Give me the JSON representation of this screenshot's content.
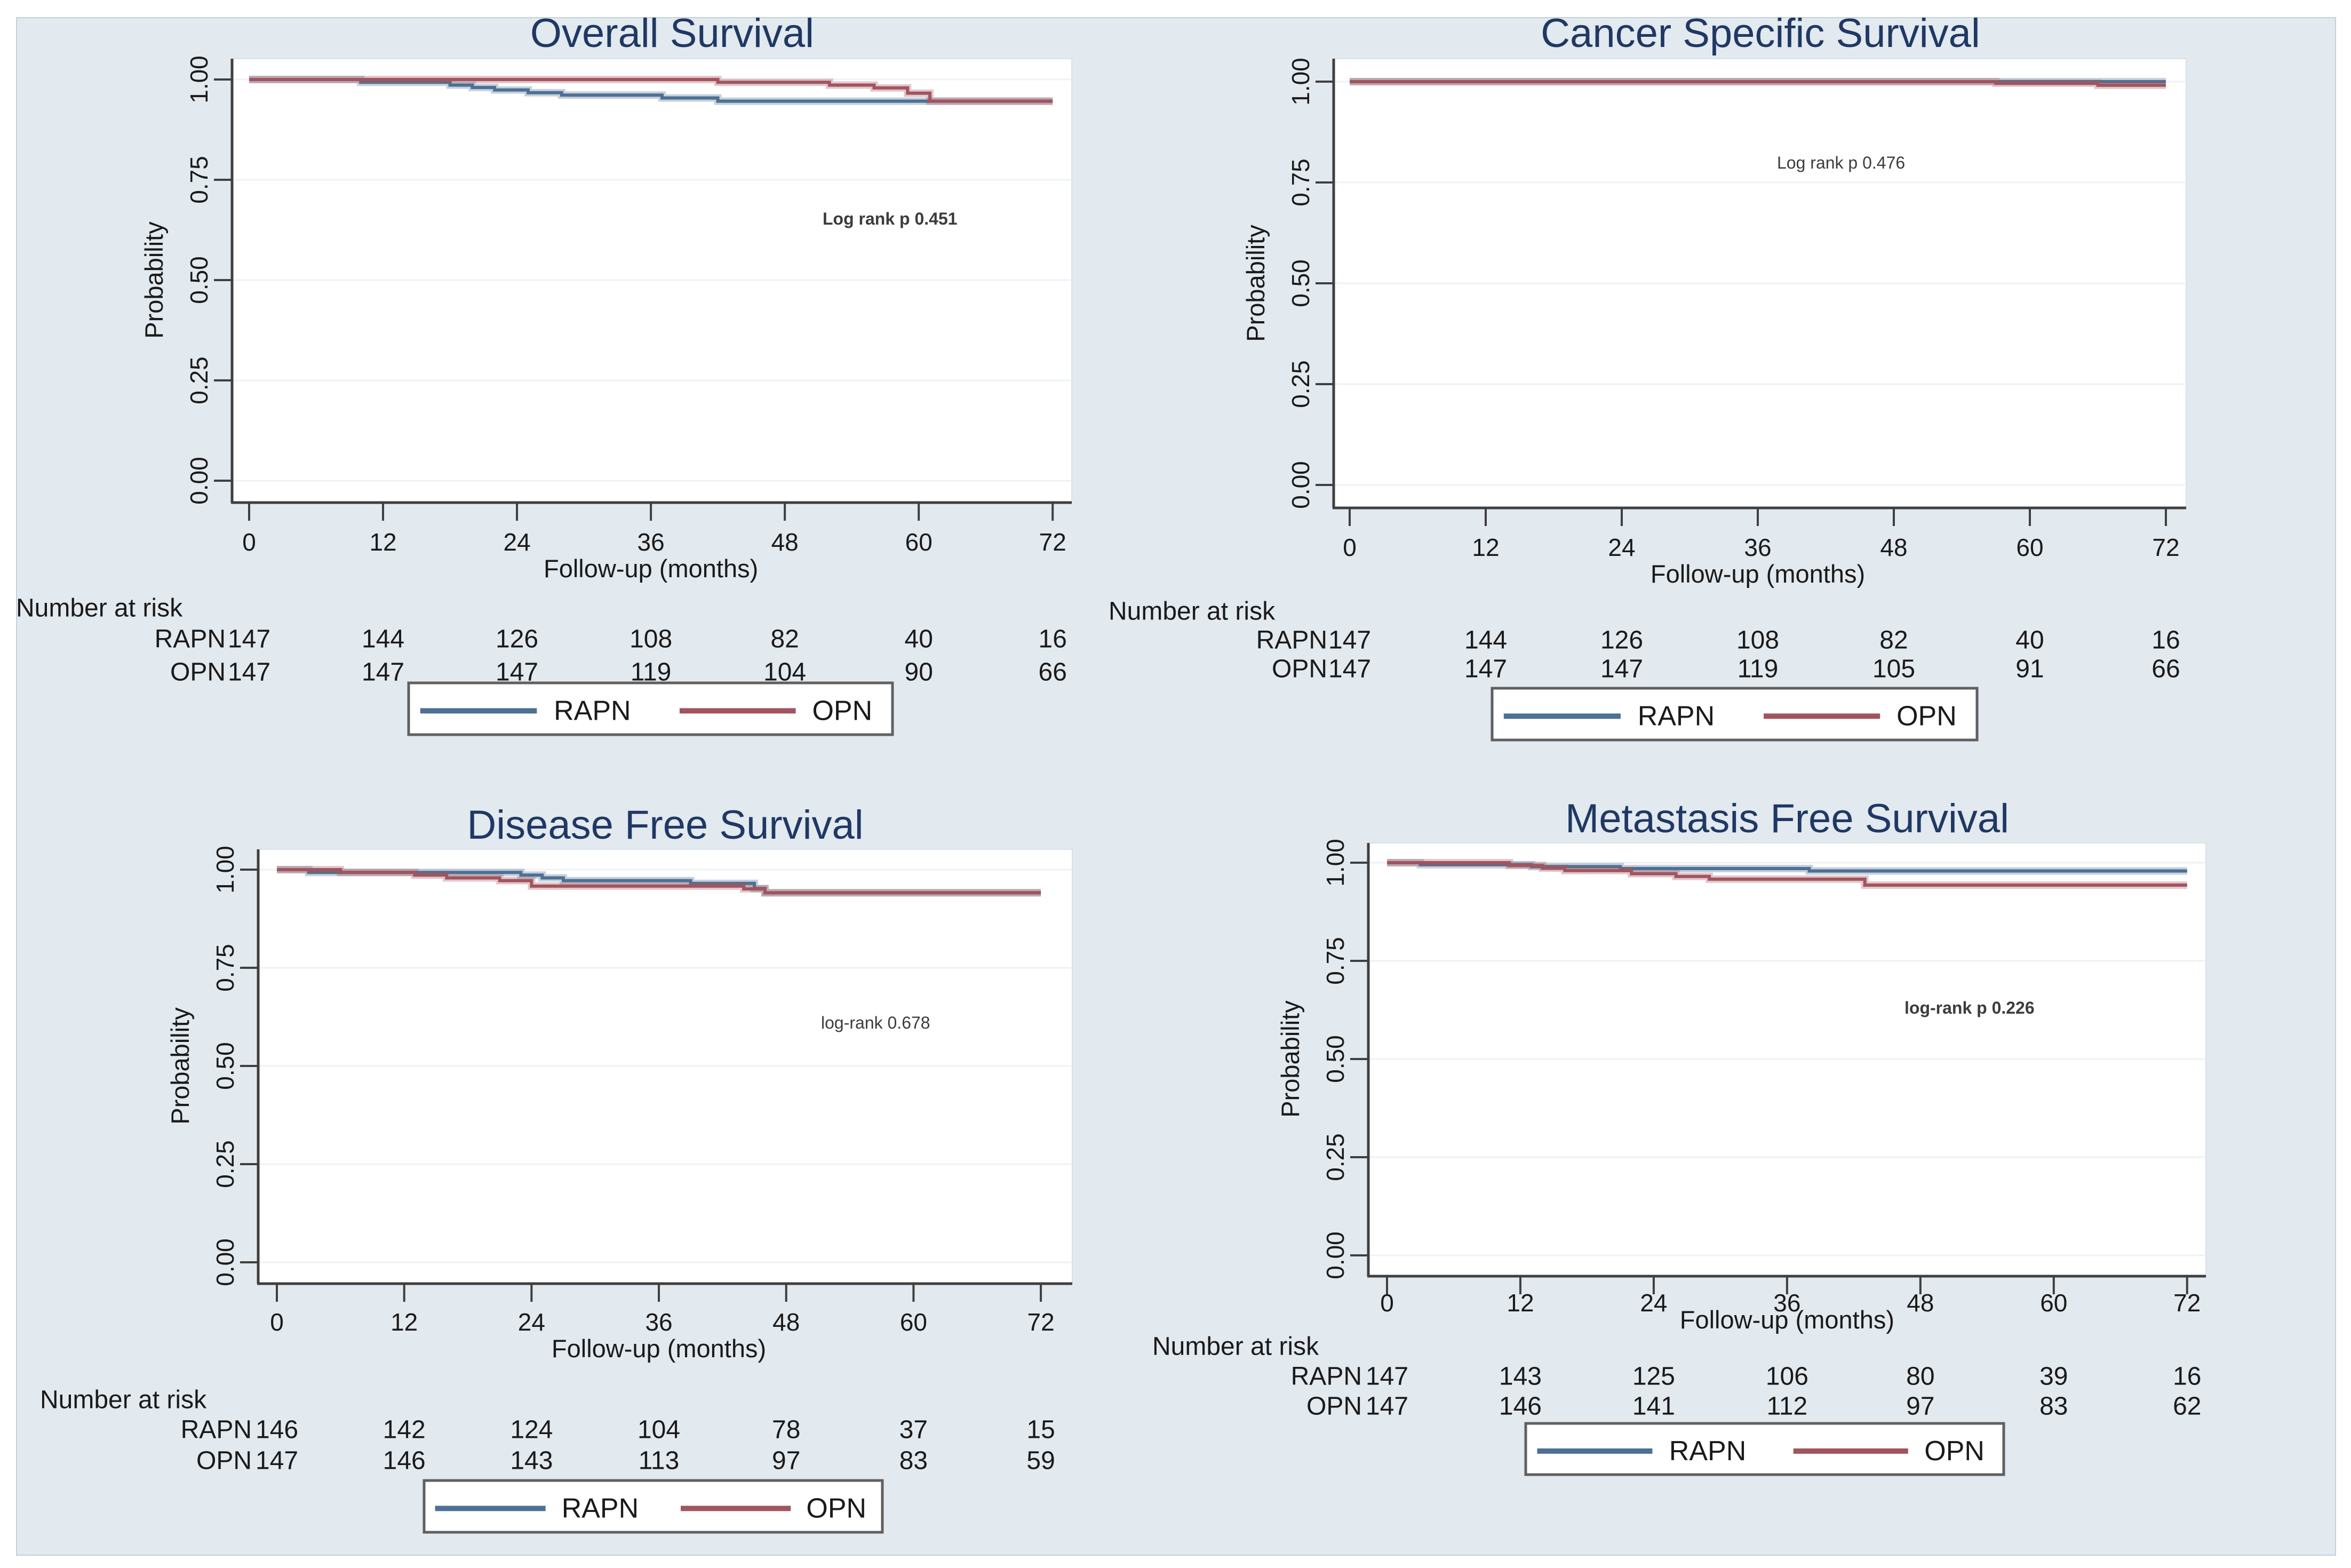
{
  "figure": {
    "background": "#ffffff",
    "panel_background": "#e2e9ef",
    "plot_background": "#ffffff",
    "plot_border_color": "#d9e2ea",
    "grid_color": "#edf2f7",
    "axis_color": "#3f3f3f",
    "text_color": "#1a1a1a",
    "annotation_color": "#3c3c3c",
    "title_color": "#1f3864",
    "rapn_color": "#4d7094",
    "opn_color": "#a2545e",
    "legend_border_color": "#606060"
  },
  "chart_data": [
    {
      "type": "line",
      "variant": "kaplan-meier-step",
      "title": "Overall Survival",
      "xlabel": "Follow-up (months)",
      "ylabel": "Probability",
      "xticks": [
        0,
        12,
        24,
        36,
        48,
        60,
        72
      ],
      "ytick_labels": [
        "0.00",
        "0.25",
        "0.50",
        "0.75",
        "1.00"
      ],
      "xlim": [
        0,
        72
      ],
      "ylim": [
        0,
        1.05
      ],
      "grid": true,
      "annotation": {
        "text": "Log rank p 0.451",
        "bold": true
      },
      "series": [
        {
          "name": "RAPN",
          "color": "#4d7094",
          "steps": [
            [
              0,
              1.0
            ],
            [
              10,
              0.993
            ],
            [
              18,
              0.986
            ],
            [
              20,
              0.98
            ],
            [
              22,
              0.974
            ],
            [
              25,
              0.967
            ],
            [
              28,
              0.961
            ],
            [
              37,
              0.954
            ],
            [
              42,
              0.946
            ],
            [
              72,
              0.946
            ]
          ]
        },
        {
          "name": "OPN",
          "color": "#a2545e",
          "steps": [
            [
              0,
              1.0
            ],
            [
              42,
              0.993
            ],
            [
              52,
              0.986
            ],
            [
              56,
              0.979
            ],
            [
              59,
              0.966
            ],
            [
              61,
              0.946
            ],
            [
              72,
              0.946
            ]
          ]
        }
      ],
      "number_at_risk": {
        "header": "Number at risk",
        "rows": [
          {
            "label": "RAPN",
            "values": [
              147,
              144,
              126,
              108,
              82,
              40,
              16
            ]
          },
          {
            "label": "OPN",
            "values": [
              147,
              147,
              147,
              119,
              104,
              90,
              66
            ]
          }
        ]
      },
      "legend": {
        "position": "bottom",
        "entries": [
          {
            "label": "RAPN",
            "color": "#4d7094"
          },
          {
            "label": "OPN",
            "color": "#a2545e"
          }
        ]
      }
    },
    {
      "type": "line",
      "variant": "kaplan-meier-step",
      "title": "Cancer Specific Survival",
      "xlabel": "Follow-up (months)",
      "ylabel": "Probability",
      "xticks": [
        0,
        12,
        24,
        36,
        48,
        60,
        72
      ],
      "ytick_labels": [
        "0.00",
        "0.25",
        "0.50",
        "0.75",
        "1.00"
      ],
      "xlim": [
        0,
        72
      ],
      "ylim": [
        0,
        1.05
      ],
      "grid": true,
      "annotation": {
        "text": "Log rank p 0.476",
        "bold": false
      },
      "series": [
        {
          "name": "RAPN",
          "color": "#4d7094",
          "steps": [
            [
              0,
              1.0
            ],
            [
              72,
              1.0
            ]
          ]
        },
        {
          "name": "OPN",
          "color": "#a2545e",
          "steps": [
            [
              0,
              1.0
            ],
            [
              57,
              0.996
            ],
            [
              66,
              0.991
            ],
            [
              72,
              0.991
            ]
          ]
        }
      ],
      "number_at_risk": {
        "header": "Number at risk",
        "rows": [
          {
            "label": "RAPN",
            "values": [
              147,
              144,
              126,
              108,
              82,
              40,
              16
            ]
          },
          {
            "label": "OPN",
            "values": [
              147,
              147,
              147,
              119,
              105,
              91,
              66
            ]
          }
        ]
      },
      "legend": {
        "position": "bottom",
        "entries": [
          {
            "label": "RAPN",
            "color": "#4d7094"
          },
          {
            "label": "OPN",
            "color": "#a2545e"
          }
        ]
      }
    },
    {
      "type": "line",
      "variant": "kaplan-meier-step",
      "title": "Disease Free Survival",
      "xlabel": "Follow-up (months)",
      "ylabel": "Probability",
      "xticks": [
        0,
        12,
        24,
        36,
        48,
        60,
        72
      ],
      "ytick_labels": [
        "0.00",
        "0.25",
        "0.50",
        "0.75",
        "1.00"
      ],
      "xlim": [
        0,
        72
      ],
      "ylim": [
        0,
        1.05
      ],
      "grid": true,
      "annotation": {
        "text": "log-rank 0.678",
        "bold": false
      },
      "series": [
        {
          "name": "RAPN",
          "color": "#4d7094",
          "steps": [
            [
              0,
              1.0
            ],
            [
              3,
              0.993
            ],
            [
              23,
              0.986
            ],
            [
              25,
              0.979
            ],
            [
              27,
              0.972
            ],
            [
              39,
              0.965
            ],
            [
              45,
              0.952
            ],
            [
              46,
              0.941
            ],
            [
              72,
              0.941
            ]
          ]
        },
        {
          "name": "OPN",
          "color": "#a2545e",
          "steps": [
            [
              0,
              1.0
            ],
            [
              6,
              0.993
            ],
            [
              13,
              0.986
            ],
            [
              16,
              0.979
            ],
            [
              21,
              0.972
            ],
            [
              24,
              0.958
            ],
            [
              44,
              0.951
            ],
            [
              46,
              0.941
            ],
            [
              72,
              0.941
            ]
          ]
        }
      ],
      "number_at_risk": {
        "header": "Number at risk",
        "rows": [
          {
            "label": "RAPN",
            "values": [
              146,
              142,
              124,
              104,
              78,
              37,
              15
            ]
          },
          {
            "label": "OPN",
            "values": [
              147,
              146,
              143,
              113,
              97,
              83,
              59
            ]
          }
        ]
      },
      "legend": {
        "position": "bottom",
        "entries": [
          {
            "label": "RAPN",
            "color": "#4d7094"
          },
          {
            "label": "OPN",
            "color": "#a2545e"
          }
        ]
      }
    },
    {
      "type": "line",
      "variant": "kaplan-meier-step",
      "title": "Metastasis Free Survival",
      "xlabel": "Follow-up (months)",
      "ylabel": "Probability",
      "xticks": [
        0,
        12,
        24,
        36,
        48,
        60,
        72
      ],
      "ytick_labels": [
        "0.00",
        "0.25",
        "0.50",
        "0.75",
        "1.00"
      ],
      "xlim": [
        0,
        72
      ],
      "ylim": [
        0,
        1.05
      ],
      "grid": true,
      "annotation": {
        "text": "log-rank p 0.226",
        "bold": true
      },
      "series": [
        {
          "name": "RAPN",
          "color": "#4d7094",
          "steps": [
            [
              0,
              1.0
            ],
            [
              3,
              0.995
            ],
            [
              13,
              0.99
            ],
            [
              21,
              0.985
            ],
            [
              38,
              0.979
            ],
            [
              72,
              0.979
            ]
          ]
        },
        {
          "name": "OPN",
          "color": "#a2545e",
          "steps": [
            [
              0,
              1.0
            ],
            [
              11,
              0.993
            ],
            [
              14,
              0.986
            ],
            [
              16,
              0.98
            ],
            [
              22,
              0.972
            ],
            [
              26,
              0.965
            ],
            [
              29,
              0.958
            ],
            [
              43,
              0.943
            ],
            [
              72,
              0.943
            ]
          ]
        }
      ],
      "number_at_risk": {
        "header": "Number at risk",
        "rows": [
          {
            "label": "RAPN",
            "values": [
              147,
              143,
              125,
              106,
              80,
              39,
              16
            ]
          },
          {
            "label": "OPN",
            "values": [
              147,
              146,
              141,
              112,
              97,
              83,
              62
            ]
          }
        ]
      },
      "legend": {
        "position": "bottom",
        "entries": [
          {
            "label": "RAPN",
            "color": "#4d7094"
          },
          {
            "label": "OPN",
            "color": "#a2545e"
          }
        ]
      }
    }
  ]
}
